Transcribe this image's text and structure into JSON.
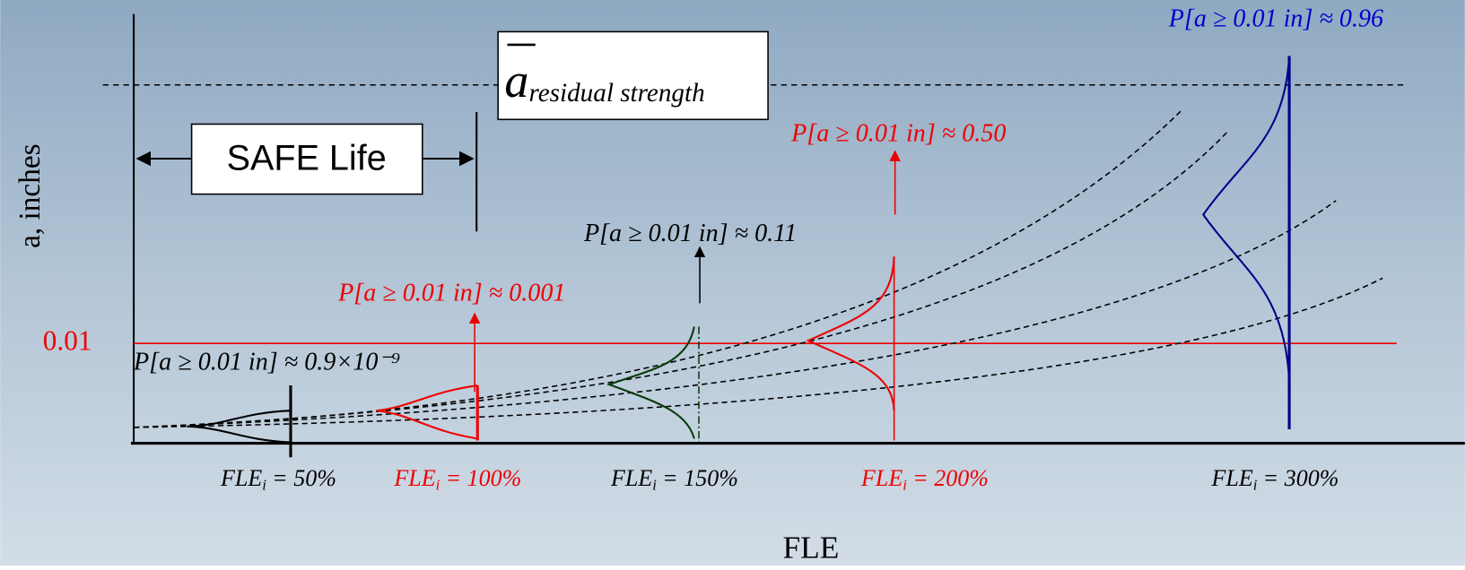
{
  "axis": {
    "y_label": "a, inches",
    "x_label": "FLE",
    "threshold_label": "0.01"
  },
  "safe_life": {
    "label": "SAFE Life"
  },
  "residual_box": {
    "symbol": "a",
    "subscript": "residual strength"
  },
  "probabilities": [
    "P[a ≥ 0.01 in] ≈ 0.9×10⁻⁹",
    "P[a ≥ 0.01 in] ≈ 0.001",
    "P[a ≥ 0.01 in] ≈ 0.11",
    "P[a ≥ 0.01 in] ≈ 0.50",
    "P[a ≥ 0.01 in] ≈ 0.96"
  ],
  "fle_labels": [
    {
      "name": "FLE",
      "sub": "i",
      "rest": "= 50%"
    },
    {
      "name": "FLE",
      "sub": "i",
      "rest": "= 100%"
    },
    {
      "name": "FLE",
      "sub": "i",
      "rest": "= 150%"
    },
    {
      "name": "FLE",
      "sub": "i",
      "rest": "= 200%"
    },
    {
      "name": "FLE",
      "sub": "i",
      "rest": "= 300%"
    }
  ]
}
